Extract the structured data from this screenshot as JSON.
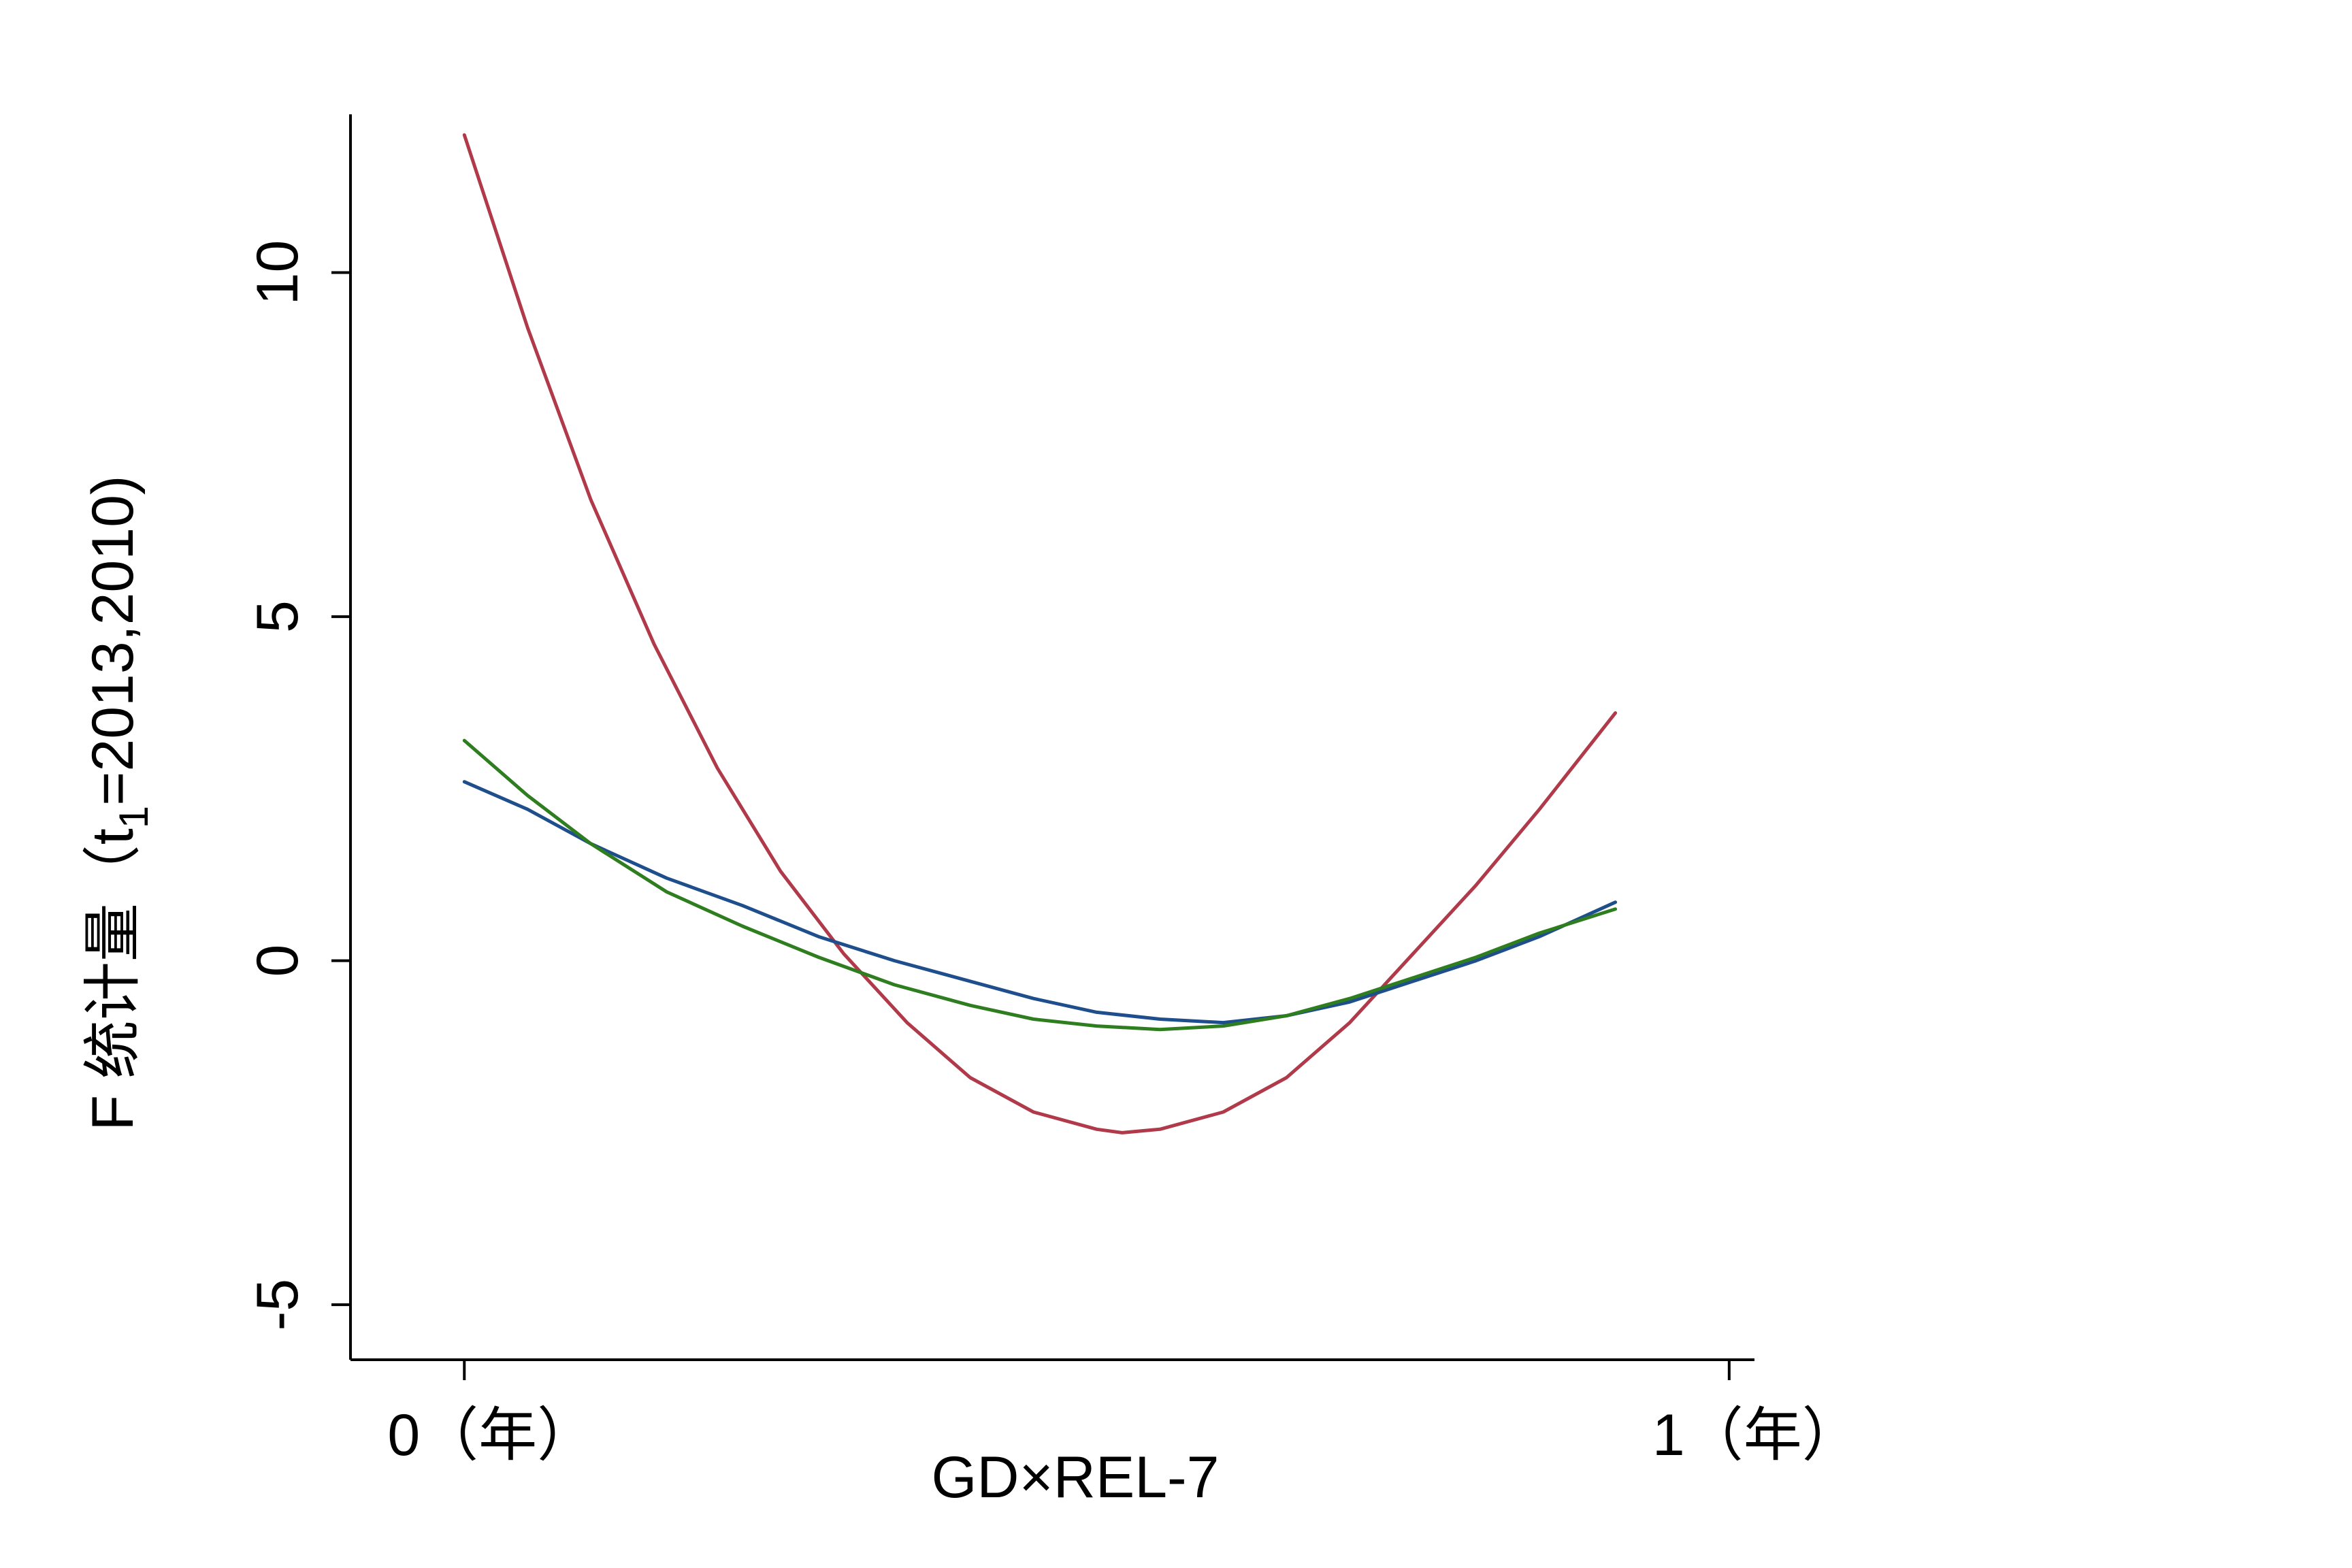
{
  "chart_data": {
    "type": "line",
    "xlabel": "GD×REL-7",
    "ylabel_main": "F 统计量（t",
    "ylabel_sub": "1",
    "ylabel_end": "=2013,2010)",
    "x_tick_labels": [
      {
        "x": 0,
        "label": "0（年）"
      },
      {
        "x": 1,
        "label": "1（年）"
      }
    ],
    "y_ticks": [
      -5,
      0,
      5,
      10
    ],
    "xlim": [
      -0.09,
      1.02
    ],
    "ylim": [
      -5.8,
      12.3
    ],
    "grid": false,
    "series": [
      {
        "color": "#b03a4a",
        "points": [
          [
            0.0,
            12.0
          ],
          [
            0.05,
            9.2
          ],
          [
            0.1,
            6.7
          ],
          [
            0.15,
            4.6
          ],
          [
            0.2,
            2.8
          ],
          [
            0.25,
            1.3
          ],
          [
            0.3,
            0.1
          ],
          [
            0.35,
            -0.9
          ],
          [
            0.4,
            -1.7
          ],
          [
            0.45,
            -2.2
          ],
          [
            0.5,
            -2.45
          ],
          [
            0.52,
            -2.5
          ],
          [
            0.55,
            -2.45
          ],
          [
            0.6,
            -2.2
          ],
          [
            0.65,
            -1.7
          ],
          [
            0.7,
            -0.9
          ],
          [
            0.75,
            0.1
          ],
          [
            0.8,
            1.1
          ],
          [
            0.85,
            2.2
          ],
          [
            0.91,
            3.6
          ]
        ]
      },
      {
        "color": "#1f4e8c",
        "points": [
          [
            0.0,
            2.6
          ],
          [
            0.05,
            2.2
          ],
          [
            0.1,
            1.7
          ],
          [
            0.16,
            1.2
          ],
          [
            0.22,
            0.8
          ],
          [
            0.28,
            0.35
          ],
          [
            0.34,
            0.0
          ],
          [
            0.4,
            -0.3
          ],
          [
            0.45,
            -0.55
          ],
          [
            0.5,
            -0.75
          ],
          [
            0.55,
            -0.85
          ],
          [
            0.6,
            -0.9
          ],
          [
            0.65,
            -0.8
          ],
          [
            0.7,
            -0.6
          ],
          [
            0.75,
            -0.3
          ],
          [
            0.8,
            0.0
          ],
          [
            0.85,
            0.35
          ],
          [
            0.91,
            0.85
          ]
        ]
      },
      {
        "color": "#2e7d1f",
        "points": [
          [
            0.0,
            3.2
          ],
          [
            0.05,
            2.4
          ],
          [
            0.1,
            1.7
          ],
          [
            0.16,
            1.0
          ],
          [
            0.22,
            0.5
          ],
          [
            0.28,
            0.05
          ],
          [
            0.34,
            -0.35
          ],
          [
            0.4,
            -0.65
          ],
          [
            0.45,
            -0.85
          ],
          [
            0.5,
            -0.95
          ],
          [
            0.55,
            -1.0
          ],
          [
            0.6,
            -0.95
          ],
          [
            0.65,
            -0.8
          ],
          [
            0.7,
            -0.55
          ],
          [
            0.75,
            -0.25
          ],
          [
            0.8,
            0.05
          ],
          [
            0.85,
            0.4
          ],
          [
            0.91,
            0.75
          ]
        ]
      }
    ]
  }
}
